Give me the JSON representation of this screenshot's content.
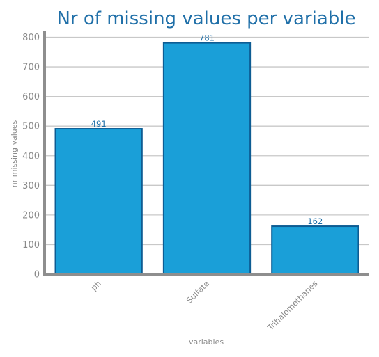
{
  "chart_data": {
    "type": "bar",
    "title": "Nr of missing values per variable",
    "xlabel": "variables",
    "ylabel": "nr missing values",
    "categories": [
      "ph",
      "Sulfate",
      "Trihalomethanes"
    ],
    "values": [
      491,
      781,
      162
    ],
    "ylim": [
      0,
      820
    ],
    "yticks": [
      0,
      100,
      200,
      300,
      400,
      500,
      600,
      700,
      800
    ],
    "grid": true,
    "bar_color": "#1a9fd8",
    "label_color": "#1f6fa8"
  }
}
